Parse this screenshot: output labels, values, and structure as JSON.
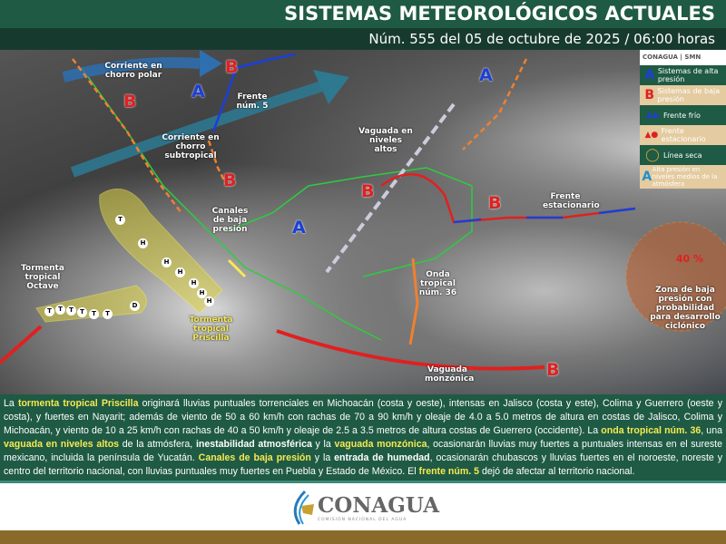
{
  "header": {
    "title": "SISTEMAS METEOROLÓGICOS ACTUALES",
    "subtitle": "Núm. 555 del 05 de octubre de 2025 / 06:00 horas"
  },
  "legend": {
    "brand": "CONAGUA | SMN",
    "items": [
      {
        "symbol": "A",
        "label": "Sistemas de alta presión",
        "icon": "high-pressure-icon"
      },
      {
        "symbol": "B",
        "label": "Sistemas de baja presión",
        "icon": "low-pressure-icon"
      },
      {
        "symbol": "▲▲",
        "label": "Frente frío",
        "icon": "cold-front-icon"
      },
      {
        "symbol": "▲●",
        "label": "Frente estacionario",
        "icon": "stationary-front-icon"
      },
      {
        "symbol": "◯",
        "label": "Línea seca",
        "icon": "dry-line-icon"
      },
      {
        "symbol": "A",
        "label": "Alta presión en niveles medios de la atmósfera",
        "icon": "mid-level-high-icon"
      }
    ]
  },
  "map": {
    "labels": {
      "polar_jet": "Corriente en chorro polar",
      "subtropical_jet": "Corriente en chorro subtropical",
      "front5": "Frente núm. 5",
      "low_channels": "Canales de baja presión",
      "upper_trough": "Vaguada en niveles altos",
      "stationary_front": "Frente estacionario",
      "tropical_wave": "Onda tropical núm. 36",
      "monsoon_trough": "Vaguada monzónica",
      "priscilla": "Tormenta tropical Priscilla",
      "octave": "Tormenta tropical Octave",
      "low_probability": "Zona de baja presión con probabilidad para desarrollo ciclónico",
      "probability": "40 %"
    },
    "track_symbols": {
      "tropical_storm": "T",
      "hurricane": "H",
      "depression": "D"
    }
  },
  "colors": {
    "header": "#1f5a45",
    "subheader": "#173a2f",
    "highlight": "#f5ea50",
    "high": "#1b3fd8",
    "low": "#e02020",
    "bar": "#8a6a2a"
  },
  "bulletin": [
    {
      "t": "La "
    },
    {
      "t": "tormenta tropical Priscilla",
      "s": "hl"
    },
    {
      "t": " originará lluvias puntuales torrenciales en Michoacán (costa y oeste), intensas en Jalisco (costa y este), Colima y Guerrero (oeste y costa), y fuertes en Nayarit; además de viento de 50 a 60 km/h con rachas de 70 a 90 km/h  y oleaje de 4.0 a 5.0 metros de altura en costas de Jalisco, Colima y Michoacán, y viento de 10 a 25 km/h con rachas de 40 a 50 km/h y oleaje de  2.5 a 3.5 metros de altura costas de Guerrero (occidente). La "
    },
    {
      "t": "onda tropical núm. 36",
      "s": "hl"
    },
    {
      "t": ", una "
    },
    {
      "t": "vaguada en niveles altos",
      "s": "hl"
    },
    {
      "t": " de la atmósfera, "
    },
    {
      "t": "inestabilidad atmosférica",
      "s": "bd"
    },
    {
      "t": " y la "
    },
    {
      "t": "vaguada monzónica",
      "s": "hl"
    },
    {
      "t": ", ocasionarán lluvias muy fuertes a puntuales intensas en el sureste mexicano, incluida la península de Yucatán. "
    },
    {
      "t": "Canales de baja presión",
      "s": "hl"
    },
    {
      "t": " y la "
    },
    {
      "t": "entrada de humedad",
      "s": "bd"
    },
    {
      "t": ", ocasionarán chubascos y lluvias fuertes en el noroeste, noreste y centro del territorio nacional, con lluvias puntuales muy fuertes en Puebla y Estado de México. El "
    },
    {
      "t": "frente núm. 5",
      "s": "hl"
    },
    {
      "t": " dejó de afectar al territorio nacional."
    }
  ],
  "footer": {
    "logo": "CONAGUA",
    "logo_sub": "COMISIÓN NACIONAL DEL AGUA"
  }
}
